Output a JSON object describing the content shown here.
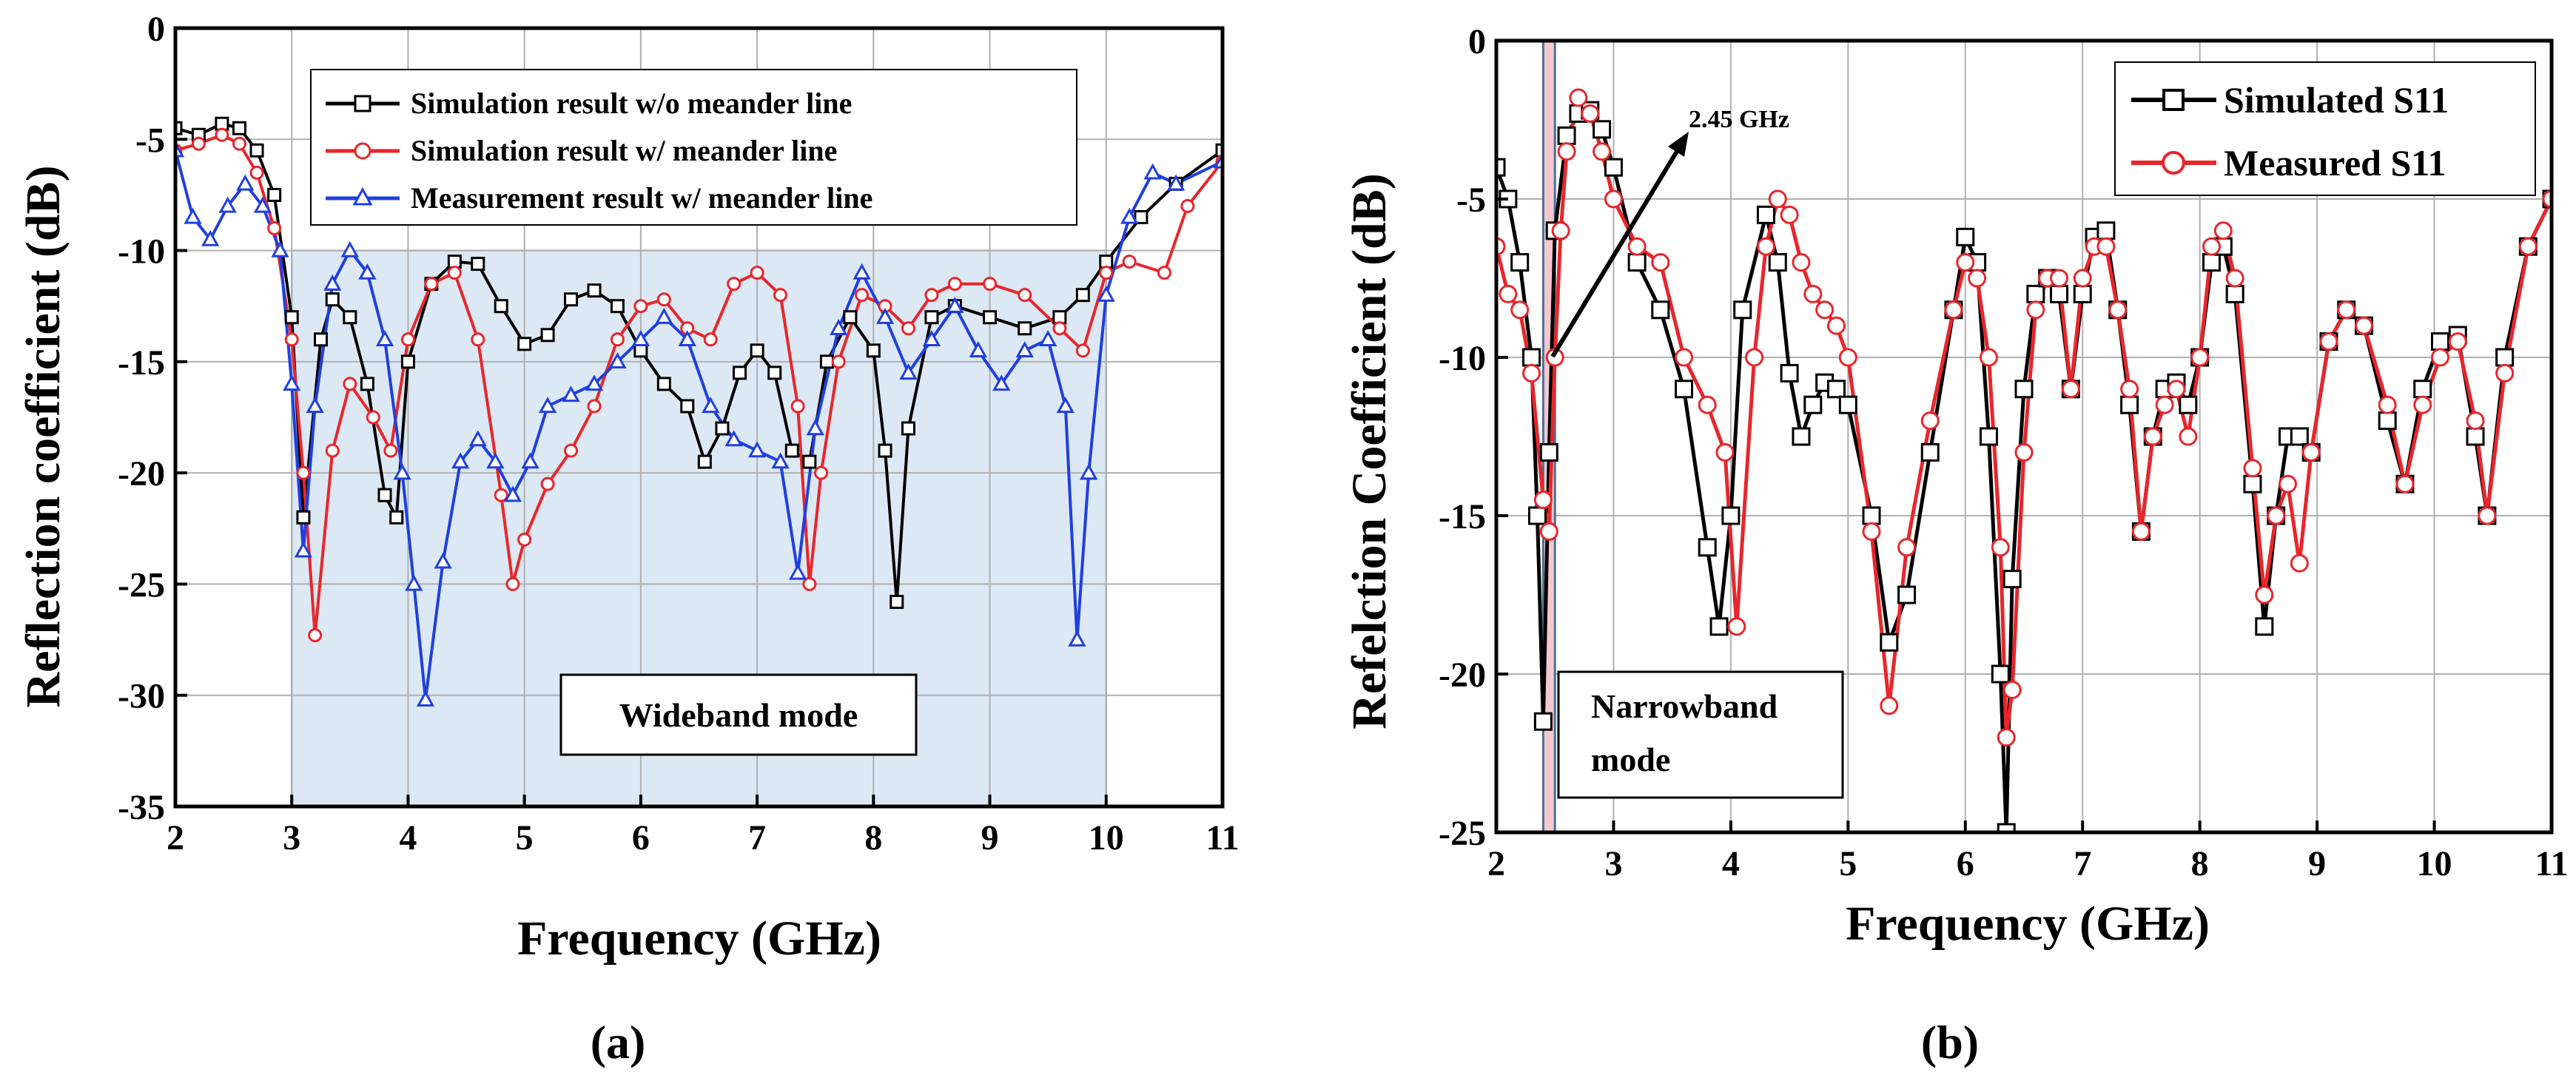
{
  "chart_data": [
    {
      "type": "line",
      "panel": "a",
      "caption": "(a)",
      "xlabel": "Frequency (GHz)",
      "ylabel": "Reflection coefficient (dB)",
      "xlim": [
        2,
        11
      ],
      "ylim": [
        -35,
        0
      ],
      "xticks": [
        2,
        3,
        4,
        5,
        6,
        7,
        8,
        9,
        10,
        11
      ],
      "yticks": [
        0,
        -5,
        -10,
        -15,
        -20,
        -25,
        -30,
        -35
      ],
      "grid": true,
      "legend_position": "top-center",
      "region": {
        "x": [
          3.0,
          10.0
        ],
        "y": [
          -35,
          -10
        ],
        "label": "Wideband mode",
        "color": "#dce8f4"
      },
      "series": [
        {
          "name": "Simulation result w/o meander line",
          "color": "#000000",
          "marker": "square",
          "x": [
            2.0,
            2.2,
            2.4,
            2.55,
            2.7,
            2.85,
            3.0,
            3.1,
            3.25,
            3.35,
            3.5,
            3.65,
            3.8,
            3.9,
            4.0,
            4.2,
            4.4,
            4.6,
            4.8,
            5.0,
            5.2,
            5.4,
            5.6,
            5.8,
            6.0,
            6.2,
            6.4,
            6.55,
            6.7,
            6.85,
            7.0,
            7.15,
            7.3,
            7.45,
            7.6,
            7.8,
            8.0,
            8.1,
            8.2,
            8.3,
            8.5,
            8.7,
            9.0,
            9.3,
            9.6,
            9.8,
            10.0,
            10.3,
            10.6,
            11.0
          ],
          "y": [
            -4.5,
            -4.8,
            -4.3,
            -4.5,
            -5.5,
            -7.5,
            -13.0,
            -22.0,
            -14.0,
            -12.2,
            -13.0,
            -16.0,
            -21.0,
            -22.0,
            -15.0,
            -11.5,
            -10.5,
            -10.6,
            -12.5,
            -14.2,
            -13.8,
            -12.2,
            -11.8,
            -12.5,
            -14.5,
            -16.0,
            -17.0,
            -19.5,
            -18.0,
            -15.5,
            -14.5,
            -15.5,
            -19.0,
            -19.5,
            -15.0,
            -13.0,
            -14.5,
            -19.0,
            -25.8,
            -18.0,
            -13.0,
            -12.5,
            -13.0,
            -13.5,
            -13.0,
            -12.0,
            -10.5,
            -8.5,
            -7.0,
            -5.5
          ]
        },
        {
          "name": "Simulation result w/ meander line",
          "color": "#e8262b",
          "marker": "circle",
          "x": [
            2.0,
            2.2,
            2.4,
            2.55,
            2.7,
            2.85,
            3.0,
            3.1,
            3.2,
            3.35,
            3.5,
            3.7,
            3.85,
            4.0,
            4.2,
            4.4,
            4.6,
            4.8,
            4.9,
            5.0,
            5.2,
            5.4,
            5.6,
            5.8,
            6.0,
            6.2,
            6.4,
            6.6,
            6.8,
            7.0,
            7.2,
            7.35,
            7.45,
            7.55,
            7.7,
            7.9,
            8.1,
            8.3,
            8.5,
            8.7,
            9.0,
            9.3,
            9.6,
            9.8,
            10.0,
            10.2,
            10.5,
            10.7,
            11.0
          ],
          "y": [
            -5.5,
            -5.2,
            -4.8,
            -5.2,
            -6.5,
            -9.0,
            -14.0,
            -20.0,
            -27.3,
            -19.0,
            -16.0,
            -17.5,
            -19.0,
            -14.0,
            -11.5,
            -11.0,
            -14.0,
            -21.0,
            -25.0,
            -23.0,
            -20.5,
            -19.0,
            -17.0,
            -14.0,
            -12.5,
            -12.2,
            -13.5,
            -14.0,
            -11.5,
            -11.0,
            -12.0,
            -17.0,
            -25.0,
            -20.0,
            -15.0,
            -12.0,
            -12.5,
            -13.5,
            -12.0,
            -11.5,
            -11.5,
            -12.0,
            -13.5,
            -14.5,
            -11.0,
            -10.5,
            -11.0,
            -8.0,
            -6.0
          ]
        },
        {
          "name": "Measurement result w/ meander line",
          "color": "#1f3fe0",
          "marker": "triangle",
          "x": [
            2.0,
            2.15,
            2.3,
            2.45,
            2.6,
            2.75,
            2.9,
            3.0,
            3.1,
            3.2,
            3.35,
            3.5,
            3.65,
            3.8,
            3.95,
            4.05,
            4.15,
            4.3,
            4.45,
            4.6,
            4.75,
            4.9,
            5.05,
            5.2,
            5.4,
            5.6,
            5.8,
            6.0,
            6.2,
            6.4,
            6.6,
            6.8,
            7.0,
            7.2,
            7.35,
            7.5,
            7.7,
            7.9,
            8.1,
            8.3,
            8.5,
            8.7,
            8.9,
            9.1,
            9.3,
            9.5,
            9.65,
            9.75,
            9.85,
            10.0,
            10.2,
            10.4,
            10.6,
            11.0
          ],
          "y": [
            -5.5,
            -8.5,
            -9.5,
            -8.0,
            -7.0,
            -8.0,
            -10.0,
            -16.0,
            -23.5,
            -17.0,
            -11.5,
            -10.0,
            -11.0,
            -14.0,
            -20.0,
            -25.0,
            -30.2,
            -24.0,
            -19.5,
            -18.5,
            -19.5,
            -21.0,
            -19.5,
            -17.0,
            -16.5,
            -16.0,
            -15.0,
            -14.0,
            -13.0,
            -14.0,
            -17.0,
            -18.5,
            -19.0,
            -19.5,
            -24.5,
            -18.0,
            -13.5,
            -11.0,
            -13.0,
            -15.5,
            -14.0,
            -12.5,
            -14.5,
            -16.0,
            -14.5,
            -14.0,
            -17.0,
            -27.5,
            -20.0,
            -12.0,
            -8.5,
            -6.5,
            -7.0,
            -6.0
          ]
        }
      ]
    },
    {
      "type": "line",
      "panel": "b",
      "caption": "(b)",
      "xlabel": "Frequency (GHz)",
      "ylabel": "Refelction Coefficient (dB)",
      "xlim": [
        2,
        11
      ],
      "ylim": [
        -25,
        0
      ],
      "xticks": [
        2,
        3,
        4,
        5,
        6,
        7,
        8,
        9,
        10,
        11
      ],
      "yticks": [
        0,
        -5,
        -10,
        -15,
        -20,
        -25
      ],
      "grid": true,
      "legend_position": "top-right",
      "band": {
        "x": [
          2.4,
          2.5
        ],
        "y": [
          -25,
          0
        ],
        "label_lines": [
          "Narrowband",
          "mode"
        ],
        "color": "#f5c8d0"
      },
      "arrow_label": "2.45 GHz",
      "series": [
        {
          "name": "Simulated S11",
          "color": "#000000",
          "marker": "square",
          "x": [
            2.0,
            2.1,
            2.2,
            2.3,
            2.35,
            2.4,
            2.45,
            2.5,
            2.6,
            2.7,
            2.8,
            2.9,
            3.0,
            3.2,
            3.4,
            3.6,
            3.8,
            3.9,
            4.0,
            4.1,
            4.3,
            4.4,
            4.5,
            4.6,
            4.7,
            4.8,
            4.9,
            5.0,
            5.2,
            5.35,
            5.5,
            5.7,
            5.9,
            6.0,
            6.1,
            6.2,
            6.3,
            6.35,
            6.4,
            6.5,
            6.6,
            6.7,
            6.8,
            6.9,
            7.0,
            7.1,
            7.2,
            7.3,
            7.4,
            7.5,
            7.6,
            7.7,
            7.8,
            7.9,
            8.0,
            8.1,
            8.2,
            8.3,
            8.45,
            8.55,
            8.65,
            8.75,
            8.85,
            8.95,
            9.1,
            9.25,
            9.4,
            9.6,
            9.75,
            9.9,
            10.05,
            10.2,
            10.35,
            10.45,
            10.6,
            10.8,
            11.0
          ],
          "y": [
            -4.0,
            -5.0,
            -7.0,
            -10.0,
            -15.0,
            -21.5,
            -13.0,
            -6.0,
            -3.0,
            -2.3,
            -2.2,
            -2.8,
            -4.0,
            -7.0,
            -8.5,
            -11.0,
            -16.0,
            -18.5,
            -15.0,
            -8.5,
            -5.5,
            -7.0,
            -10.5,
            -12.5,
            -11.5,
            -10.8,
            -11.0,
            -11.5,
            -15.0,
            -19.0,
            -17.5,
            -13.0,
            -8.5,
            -6.2,
            -7.0,
            -12.5,
            -20.0,
            -25.0,
            -17.0,
            -11.0,
            -8.0,
            -7.5,
            -8.0,
            -11.0,
            -8.0,
            -6.2,
            -6.0,
            -8.5,
            -11.5,
            -15.5,
            -12.5,
            -11.0,
            -10.8,
            -11.5,
            -10.0,
            -7.0,
            -6.5,
            -8.0,
            -14.0,
            -18.5,
            -15.0,
            -12.5,
            -12.5,
            -13.0,
            -9.5,
            -8.5,
            -9.0,
            -12.0,
            -14.0,
            -11.0,
            -9.5,
            -9.3,
            -12.5,
            -15.0,
            -10.0,
            -6.5,
            -5.0
          ]
        },
        {
          "name": "Measured S11",
          "color": "#e8262b",
          "marker": "circle",
          "x": [
            2.0,
            2.1,
            2.2,
            2.3,
            2.4,
            2.45,
            2.5,
            2.55,
            2.6,
            2.7,
            2.8,
            2.9,
            3.0,
            3.2,
            3.4,
            3.6,
            3.8,
            3.95,
            4.05,
            4.2,
            4.3,
            4.4,
            4.5,
            4.6,
            4.7,
            4.8,
            4.9,
            5.0,
            5.2,
            5.35,
            5.5,
            5.7,
            5.9,
            6.0,
            6.1,
            6.2,
            6.3,
            6.35,
            6.4,
            6.5,
            6.6,
            6.7,
            6.8,
            6.9,
            7.0,
            7.1,
            7.2,
            7.3,
            7.4,
            7.5,
            7.6,
            7.7,
            7.8,
            7.9,
            8.0,
            8.1,
            8.2,
            8.3,
            8.45,
            8.55,
            8.65,
            8.75,
            8.85,
            8.95,
            9.1,
            9.25,
            9.4,
            9.6,
            9.75,
            9.9,
            10.05,
            10.2,
            10.35,
            10.45,
            10.6,
            10.8,
            11.0
          ],
          "y": [
            -6.5,
            -8.0,
            -8.5,
            -10.5,
            -14.5,
            -15.5,
            -10.0,
            -6.0,
            -3.5,
            -1.8,
            -2.3,
            -3.5,
            -5.0,
            -6.5,
            -7.0,
            -10.0,
            -11.5,
            -13.0,
            -18.5,
            -10.0,
            -6.5,
            -5.0,
            -5.5,
            -7.0,
            -8.0,
            -8.5,
            -9.0,
            -10.0,
            -15.5,
            -21.0,
            -16.0,
            -12.0,
            -8.5,
            -7.0,
            -7.5,
            -10.0,
            -16.0,
            -22.0,
            -20.5,
            -13.0,
            -8.5,
            -7.5,
            -7.5,
            -11.0,
            -7.5,
            -6.5,
            -6.5,
            -8.5,
            -11.0,
            -15.5,
            -12.5,
            -11.5,
            -11.0,
            -12.5,
            -10.0,
            -6.5,
            -6.0,
            -7.5,
            -13.5,
            -17.5,
            -15.0,
            -14.0,
            -16.5,
            -13.0,
            -9.5,
            -8.5,
            -9.0,
            -11.5,
            -14.0,
            -11.5,
            -10.0,
            -9.5,
            -12.0,
            -15.0,
            -10.5,
            -6.5,
            -5.0
          ]
        }
      ]
    }
  ]
}
